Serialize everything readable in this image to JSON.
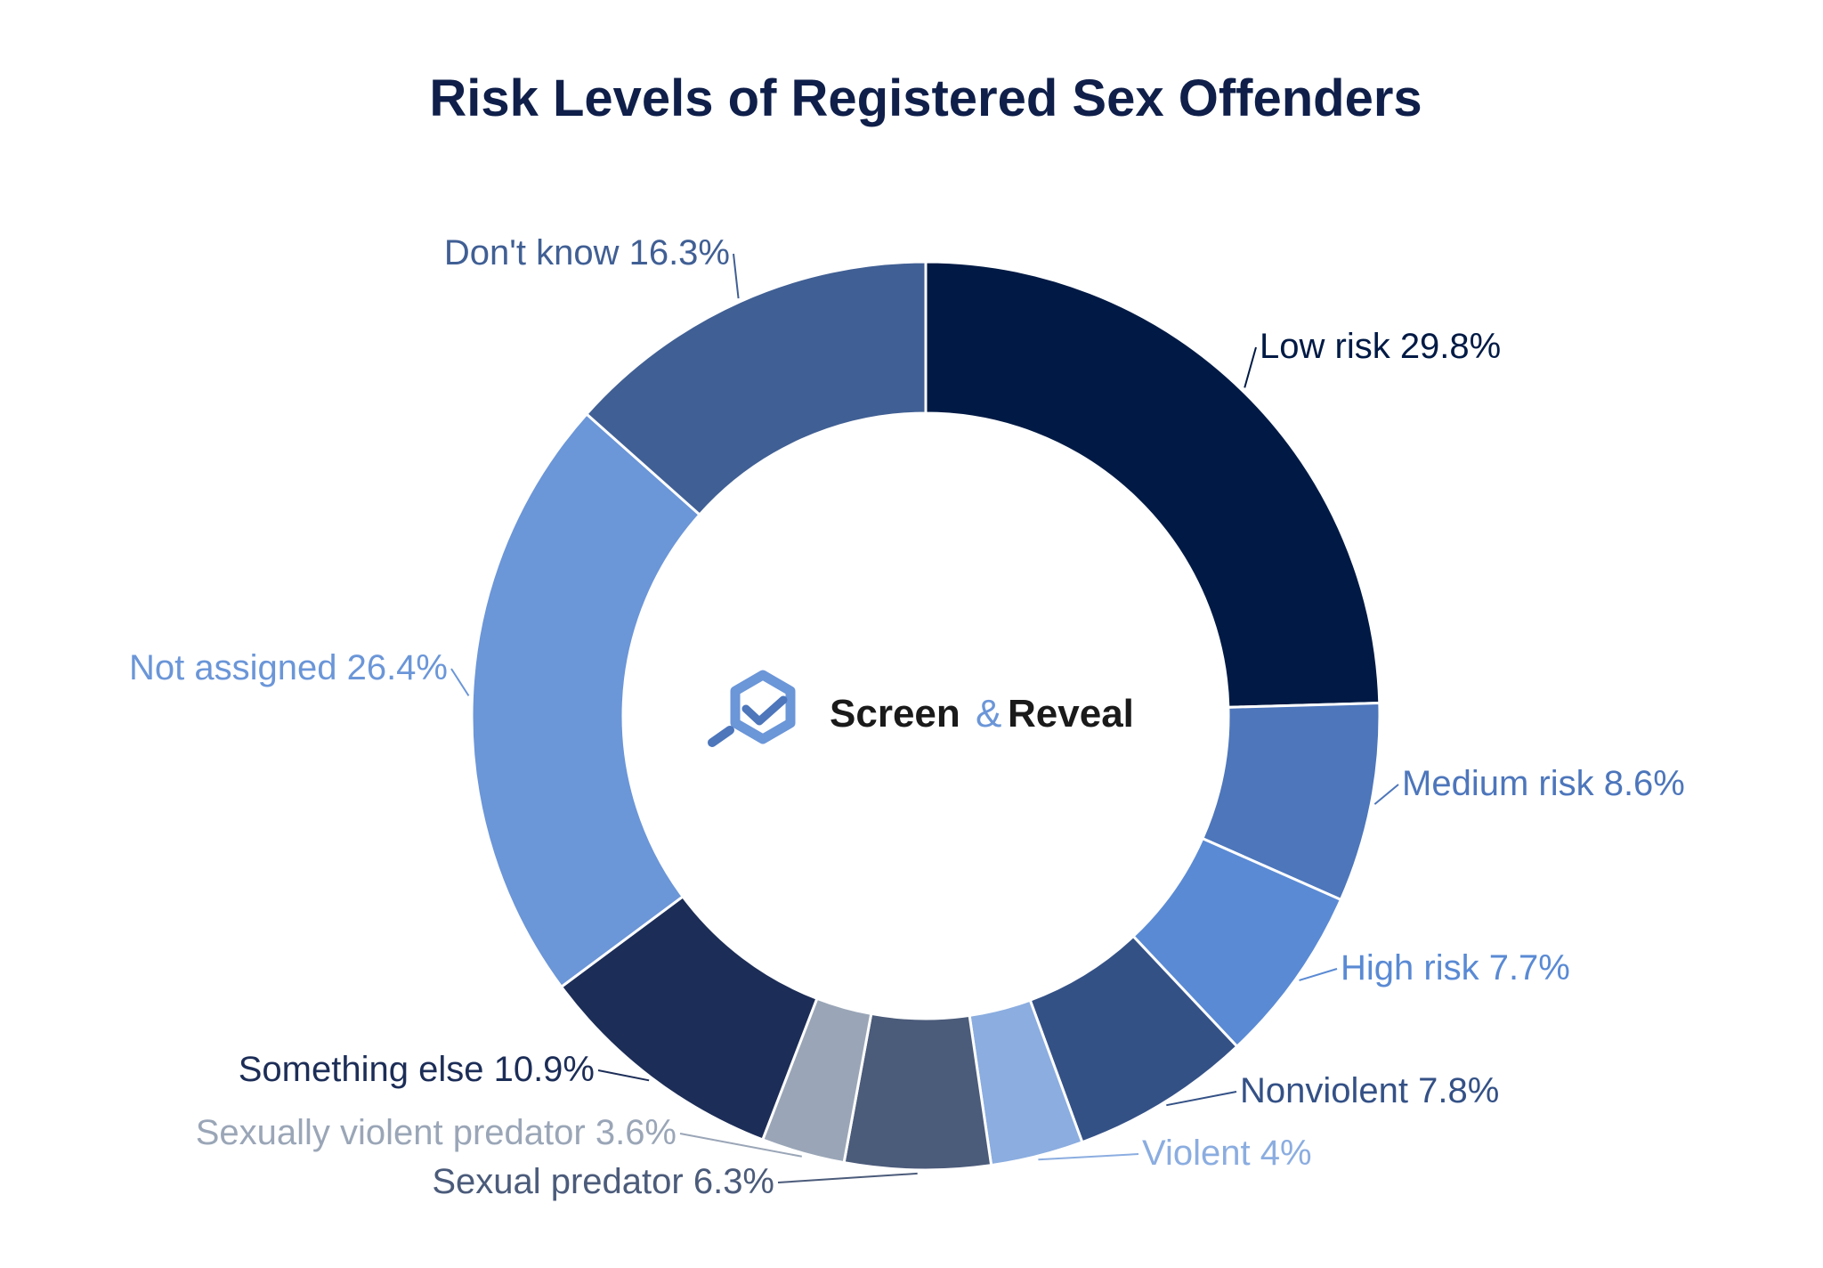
{
  "chart_data": {
    "type": "pie",
    "title": "Risk Levels of Registered Sex Offenders",
    "style": "donut",
    "slices": [
      {
        "label": "Low risk",
        "value": 29.8,
        "display": "Low risk 29.8%",
        "color": "#001a45"
      },
      {
        "label": "Medium risk",
        "value": 8.6,
        "display": "Medium risk 8.6%",
        "color": "#4d76bb"
      },
      {
        "label": "High risk",
        "value": 7.7,
        "display": "High risk 7.7%",
        "color": "#5a8ad4"
      },
      {
        "label": "Nonviolent",
        "value": 7.8,
        "display": "Nonviolent 7.8%",
        "color": "#345186"
      },
      {
        "label": "Violent",
        "value": 4,
        "display": "Violent 4%",
        "color": "#8badE0"
      },
      {
        "label": "Sexual predator",
        "value": 6.3,
        "display": "Sexual predator 6.3%",
        "color": "#4b5b7a"
      },
      {
        "label": "Sexually violent predator",
        "value": 3.6,
        "display": "Sexually violent predator 3.6%",
        "color": "#9aa6b7"
      },
      {
        "label": "Something else",
        "value": 10.9,
        "display": "Something else 10.9%",
        "color": "#1c2d57"
      },
      {
        "label": "Not assigned",
        "value": 26.4,
        "display": "Not assigned 26.4%",
        "color": "#6b96d8"
      },
      {
        "label": "Don't know",
        "value": 16.3,
        "display": "Don't know 16.3%",
        "color": "#405f94"
      }
    ]
  },
  "brand": {
    "name_part1": "Screen",
    "name_amp": "&",
    "name_part2": "Reveal",
    "icon": "magnifier-check-logo-icon"
  }
}
